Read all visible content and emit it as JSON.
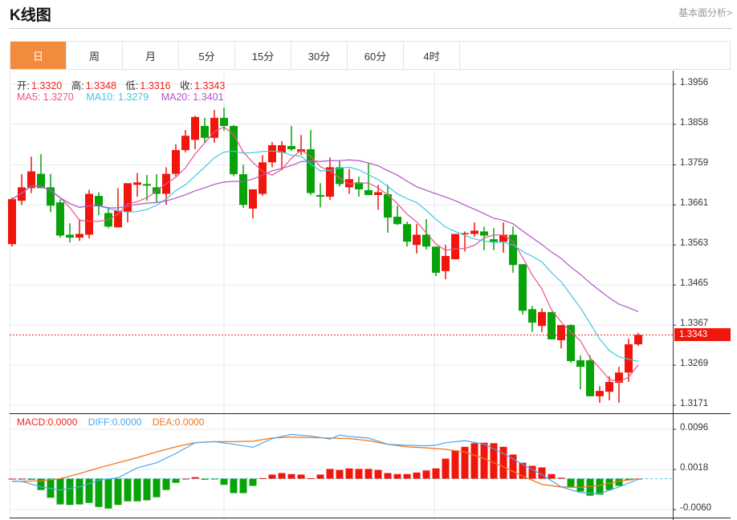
{
  "header": {
    "title": "K线图",
    "link": "基本面分析>"
  },
  "tabs": [
    {
      "label": "日",
      "active": true
    },
    {
      "label": "周"
    },
    {
      "label": "月"
    },
    {
      "label": "5分"
    },
    {
      "label": "15分"
    },
    {
      "label": "30分"
    },
    {
      "label": "60分"
    },
    {
      "label": "4时"
    }
  ],
  "ohlc_info": {
    "open_label": "开:",
    "open": "1.3320",
    "high_label": "高:",
    "high": "1.3348",
    "low_label": "低:",
    "low": "1.3316",
    "close_label": "收:",
    "close": "1.3343"
  },
  "ma_info": {
    "ma5": "MA5: 1.3270",
    "ma10": "MA10: 1.3279",
    "ma20": "MA20: 1.3401"
  },
  "macd_info": {
    "macd": "MACD:0.0000",
    "diff": "DIFF:0.0000",
    "dea": "DEA:0.0000"
  },
  "colors": {
    "up": "#f0160b",
    "down": "#08a30a",
    "ma5": "#f0528a",
    "ma10": "#3fc7e0",
    "ma20": "#b452c8",
    "diff": "#4aa8f0",
    "dea": "#f5751c",
    "accent": "#f28c3c"
  },
  "chart_data": [
    {
      "type": "candlestick",
      "title": "K线图",
      "y_ticks": [
        "1.3956",
        "1.3858",
        "1.3759",
        "1.3661",
        "1.3563",
        "1.3465",
        "1.3367",
        "1.3269",
        "1.3171"
      ],
      "ylim": [
        1.3171,
        1.3956
      ],
      "current_price": "1.3343",
      "candles": [
        [
          1.3565,
          1.3679,
          1.3559,
          1.3675
        ],
        [
          1.3671,
          1.3736,
          1.3661,
          1.3704
        ],
        [
          1.3702,
          1.3779,
          1.369,
          1.3743
        ],
        [
          1.3737,
          1.3785,
          1.3702,
          1.3702
        ],
        [
          1.3704,
          1.3737,
          1.3643,
          1.3659
        ],
        [
          1.3667,
          1.3675,
          1.3581,
          1.3586
        ],
        [
          1.3588,
          1.3616,
          1.3569,
          1.3581
        ],
        [
          1.3581,
          1.3626,
          1.3573,
          1.359
        ],
        [
          1.3588,
          1.3698,
          1.3579,
          1.3688
        ],
        [
          1.3683,
          1.3692,
          1.3636,
          1.3659
        ],
        [
          1.3641,
          1.3655,
          1.3604,
          1.3608
        ],
        [
          1.3606,
          1.3702,
          1.3606,
          1.3647
        ],
        [
          1.3645,
          1.3714,
          1.3618,
          1.3714
        ],
        [
          1.371,
          1.3739,
          1.3681,
          1.3716
        ],
        [
          1.3712,
          1.3734,
          1.3671,
          1.3708
        ],
        [
          1.3704,
          1.3736,
          1.3667,
          1.3688
        ],
        [
          1.3688,
          1.3753,
          1.3661,
          1.3737
        ],
        [
          1.3737,
          1.3809,
          1.3731,
          1.3795
        ],
        [
          1.3795,
          1.3844,
          1.3789,
          1.383
        ],
        [
          1.382,
          1.3879,
          1.3797,
          1.3876
        ],
        [
          1.3854,
          1.3874,
          1.3813,
          1.3825
        ],
        [
          1.3825,
          1.3893,
          1.3813,
          1.3874
        ],
        [
          1.3874,
          1.3899,
          1.3842,
          1.3854
        ],
        [
          1.3854,
          1.3856,
          1.3731,
          1.3736
        ],
        [
          1.3736,
          1.3759,
          1.3654,
          1.3661
        ],
        [
          1.3652,
          1.3699,
          1.3628,
          1.3699
        ],
        [
          1.3688,
          1.3783,
          1.3683,
          1.3765
        ],
        [
          1.3765,
          1.3815,
          1.3753,
          1.3807
        ],
        [
          1.3789,
          1.3817,
          1.3746,
          1.3807
        ],
        [
          1.3805,
          1.3854,
          1.3793,
          1.3797
        ],
        [
          1.3791,
          1.3832,
          1.3783,
          1.3797
        ],
        [
          1.3797,
          1.3844,
          1.3685,
          1.369
        ],
        [
          1.3685,
          1.3714,
          1.3655,
          1.3681
        ],
        [
          1.3681,
          1.3777,
          1.3673,
          1.3753
        ],
        [
          1.3753,
          1.3769,
          1.3706,
          1.3712
        ],
        [
          1.3704,
          1.3749,
          1.3688,
          1.3724
        ],
        [
          1.3716,
          1.373,
          1.3681,
          1.3699
        ],
        [
          1.3697,
          1.3763,
          1.3685,
          1.3685
        ],
        [
          1.3685,
          1.371,
          1.3649,
          1.3692
        ],
        [
          1.3687,
          1.371,
          1.3593,
          1.363
        ],
        [
          1.3632,
          1.3659,
          1.3612,
          1.3614
        ],
        [
          1.3614,
          1.362,
          1.3559,
          1.3571
        ],
        [
          1.3563,
          1.3614,
          1.3542,
          1.3588
        ],
        [
          1.3588,
          1.3626,
          1.3552,
          1.3559
        ],
        [
          1.3559,
          1.3559,
          1.3487,
          1.3495
        ],
        [
          1.3499,
          1.3563,
          1.3479,
          1.3536
        ],
        [
          1.3528,
          1.359,
          1.3528,
          1.359
        ],
        [
          1.359,
          1.3596,
          1.3547,
          1.3592
        ],
        [
          1.359,
          1.3618,
          1.3583,
          1.3598
        ],
        [
          1.3596,
          1.3608,
          1.355,
          1.3586
        ],
        [
          1.3577,
          1.3604,
          1.355,
          1.3571
        ],
        [
          1.3571,
          1.3618,
          1.3544,
          1.3588
        ],
        [
          1.3588,
          1.3608,
          1.3495,
          1.3514
        ],
        [
          1.3516,
          1.3516,
          1.3393,
          1.3402
        ],
        [
          1.3406,
          1.3414,
          1.335,
          1.3373
        ],
        [
          1.3365,
          1.3408,
          1.335,
          1.3399
        ],
        [
          1.3399,
          1.3399,
          1.3332,
          1.3332
        ],
        [
          1.333,
          1.3367,
          1.331,
          1.3367
        ],
        [
          1.3367,
          1.3369,
          1.3275,
          1.3279
        ],
        [
          1.3281,
          1.3293,
          1.321,
          1.3265
        ],
        [
          1.3281,
          1.3293,
          1.3193,
          1.3193
        ],
        [
          1.3193,
          1.3218,
          1.3177,
          1.3206
        ],
        [
          1.3204,
          1.3242,
          1.3183,
          1.3228
        ],
        [
          1.3226,
          1.3265,
          1.3177,
          1.3251
        ],
        [
          1.3251,
          1.3334,
          1.3228,
          1.332
        ],
        [
          1.332,
          1.3348,
          1.3316,
          1.3343
        ]
      ],
      "candle_format": [
        "open",
        "high",
        "low",
        "close"
      ]
    },
    {
      "type": "macd",
      "y_ticks": [
        "0.0096",
        "0.0018",
        "-0.0060"
      ],
      "ylim": [
        -0.006,
        0.0096
      ],
      "histogram": [
        0,
        0,
        -0.0002,
        -0.0022,
        -0.0037,
        -0.005,
        -0.0051,
        -0.005,
        -0.0047,
        -0.0055,
        -0.0058,
        -0.0051,
        -0.0044,
        -0.0044,
        -0.0042,
        -0.0036,
        -0.0022,
        -0.0008,
        0,
        0.0003,
        -0.0002,
        -0.0001,
        -0.0012,
        -0.0028,
        -0.0028,
        -0.0014,
        0.0001,
        0.0008,
        0.0011,
        0.0009,
        0.0008,
        0.0001,
        0.0008,
        0.0019,
        0.0017,
        0.002,
        0.0019,
        0.0019,
        0.0017,
        0.0011,
        0.0009,
        0.0009,
        0.0012,
        0.0016,
        0.002,
        0.0039,
        0.0055,
        0.0062,
        0.0069,
        0.007,
        0.0069,
        0.0062,
        0.0047,
        0.0031,
        0.0025,
        0.0022,
        0.0009,
        0.0002,
        -0.0016,
        -0.0025,
        -0.0033,
        -0.0031,
        -0.0022,
        -0.0014,
        -0.0003,
        0
      ],
      "diff": [
        [
          1,
          -0.0005
        ],
        [
          2,
          -0.0005
        ],
        [
          4,
          -0.0016
        ],
        [
          6,
          -0.0022
        ],
        [
          8,
          -0.0016
        ],
        [
          10,
          -0.0003
        ],
        [
          12,
          0.0002
        ],
        [
          14,
          0.0021
        ],
        [
          16,
          0.0031
        ],
        [
          18,
          0.0049
        ],
        [
          20,
          0.007
        ],
        [
          22,
          0.0072
        ],
        [
          24,
          0.0067
        ],
        [
          26,
          0.0061
        ],
        [
          28,
          0.0078
        ],
        [
          30,
          0.0086
        ],
        [
          32,
          0.0083
        ],
        [
          34,
          0.0077
        ],
        [
          35,
          0.0085
        ],
        [
          36,
          0.0082
        ],
        [
          38,
          0.0079
        ],
        [
          40,
          0.0067
        ],
        [
          42,
          0.0065
        ],
        [
          44,
          0.0064
        ],
        [
          45,
          0.0065
        ],
        [
          46,
          0.007
        ],
        [
          48,
          0.0074
        ],
        [
          50,
          0.0067
        ],
        [
          52,
          0.0049
        ],
        [
          54,
          0.0028
        ],
        [
          56,
          0.0008
        ],
        [
          58,
          -0.0016
        ],
        [
          60,
          -0.0027
        ],
        [
          62,
          -0.0029
        ],
        [
          64,
          -0.0016
        ],
        [
          66,
          -0.0001
        ]
      ],
      "dea": [
        [
          1,
          -0.0005
        ],
        [
          2,
          -0.0005
        ],
        [
          4,
          -0.0004
        ],
        [
          6,
          0.0
        ],
        [
          8,
          0.001
        ],
        [
          10,
          0.0021
        ],
        [
          12,
          0.0031
        ],
        [
          14,
          0.0041
        ],
        [
          16,
          0.0052
        ],
        [
          18,
          0.0062
        ],
        [
          20,
          0.007
        ],
        [
          22,
          0.0072
        ],
        [
          24,
          0.0072
        ],
        [
          26,
          0.0073
        ],
        [
          28,
          0.0079
        ],
        [
          30,
          0.0081
        ],
        [
          32,
          0.008
        ],
        [
          34,
          0.0079
        ],
        [
          36,
          0.0078
        ],
        [
          38,
          0.0074
        ],
        [
          40,
          0.0067
        ],
        [
          42,
          0.0062
        ],
        [
          44,
          0.006
        ],
        [
          46,
          0.0057
        ],
        [
          48,
          0.0052
        ],
        [
          50,
          0.0039
        ],
        [
          52,
          0.0023
        ],
        [
          54,
          0.0005
        ],
        [
          56,
          -0.0011
        ],
        [
          58,
          -0.0016
        ],
        [
          60,
          -0.0017
        ],
        [
          62,
          -0.0013
        ],
        [
          64,
          -0.0005
        ],
        [
          66,
          0.0
        ]
      ]
    }
  ]
}
